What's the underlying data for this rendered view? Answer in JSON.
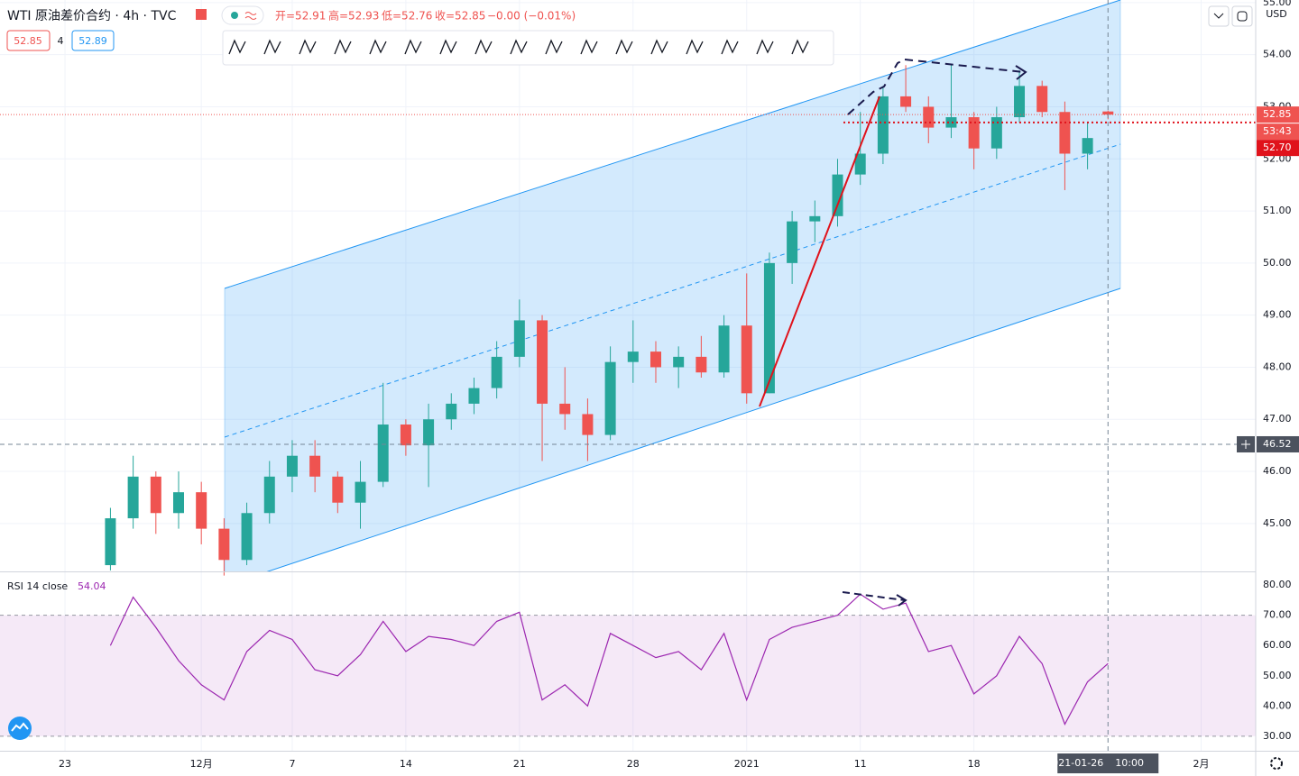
{
  "chart_data": [
    {
      "type": "candlestick",
      "title": "WTI 原油差价合约 · 4h · TVC",
      "ohlc_legend": [
        "开=52.91",
        "高=52.93",
        "低=52.76",
        "收=52.85",
        "−0.00 (−0.01%)"
      ],
      "quote_boxes": {
        "sell": {
          "value": 52.85,
          "label": "52.85"
        },
        "spread": 4,
        "buy": {
          "value": 52.89,
          "label": "52.89"
        }
      },
      "currency": "USD",
      "x": [
        2,
        3,
        4,
        5,
        6,
        7,
        8,
        9,
        10,
        11,
        12,
        13,
        14,
        15,
        16,
        17,
        18,
        19,
        20,
        21,
        22,
        23,
        24,
        25,
        26,
        27,
        28,
        29,
        30,
        31,
        32,
        33,
        34,
        35,
        36,
        37,
        38,
        39,
        40,
        41,
        42,
        43,
        44,
        45,
        45.9
      ],
      "open": [
        44.2,
        45.1,
        45.9,
        45.2,
        45.6,
        44.9,
        44.3,
        45.2,
        45.9,
        46.3,
        45.9,
        45.4,
        45.8,
        46.9,
        46.5,
        47.0,
        47.3,
        47.6,
        48.2,
        48.9,
        47.3,
        47.1,
        46.7,
        48.1,
        48.3,
        48.0,
        48.2,
        47.9,
        48.8,
        47.5,
        50.0,
        50.8,
        50.9,
        51.7,
        52.1,
        53.2,
        53.0,
        52.6,
        52.8,
        52.2,
        52.8,
        53.4,
        52.9,
        52.1,
        52.91
      ],
      "high": [
        45.3,
        46.3,
        46.0,
        46.0,
        45.8,
        45.1,
        45.4,
        46.2,
        46.6,
        46.6,
        46.0,
        46.2,
        47.7,
        47.0,
        47.3,
        47.5,
        47.8,
        48.5,
        49.3,
        49.0,
        48.0,
        47.4,
        48.4,
        48.9,
        48.5,
        48.4,
        48.6,
        49.0,
        49.8,
        50.2,
        51.0,
        51.2,
        52.0,
        52.9,
        53.4,
        53.8,
        53.2,
        53.8,
        52.9,
        53.0,
        53.7,
        53.5,
        53.1,
        52.7,
        52.93
      ],
      "low": [
        44.1,
        44.9,
        44.8,
        44.9,
        44.6,
        44.0,
        44.2,
        45.0,
        45.6,
        45.6,
        45.2,
        44.9,
        45.7,
        46.3,
        45.7,
        46.8,
        47.1,
        47.4,
        48.0,
        46.2,
        46.8,
        46.2,
        46.6,
        47.7,
        47.7,
        47.6,
        47.8,
        47.8,
        47.3,
        47.5,
        49.6,
        50.4,
        50.7,
        51.5,
        51.9,
        52.9,
        52.3,
        52.4,
        51.8,
        52.0,
        52.7,
        52.8,
        51.4,
        51.8,
        52.76
      ],
      "close": [
        45.1,
        45.9,
        45.2,
        45.6,
        44.9,
        44.3,
        45.2,
        45.9,
        46.3,
        45.9,
        45.4,
        45.8,
        46.9,
        46.5,
        47.0,
        47.3,
        47.6,
        48.2,
        48.9,
        47.3,
        47.1,
        46.7,
        48.1,
        48.3,
        48.0,
        48.2,
        47.9,
        48.8,
        47.5,
        50.0,
        50.8,
        50.9,
        51.7,
        52.1,
        53.2,
        53.0,
        52.6,
        52.8,
        52.2,
        52.8,
        53.4,
        52.9,
        52.1,
        52.4,
        52.85
      ],
      "up_color": "#26a69a",
      "down_color": "#ef5350",
      "xlim": [
        -2.86,
        52.4
      ],
      "xticks": [
        {
          "value": 0,
          "label": "23"
        },
        {
          "value": 6,
          "label": "12月"
        },
        {
          "value": 10,
          "label": "7"
        },
        {
          "value": 15,
          "label": "14"
        },
        {
          "value": 20,
          "label": "21"
        },
        {
          "value": 25,
          "label": "28"
        },
        {
          "value": 30,
          "label": "2021"
        },
        {
          "value": 35,
          "label": "11"
        },
        {
          "value": 40,
          "label": "18"
        },
        {
          "value": 50,
          "label": "2月"
        }
      ],
      "ylim": [
        44.08,
        55.05
      ],
      "yticks": [
        {
          "value": 45,
          "label": "45.00"
        },
        {
          "value": 46,
          "label": "46.00"
        },
        {
          "value": 47,
          "label": "47.00"
        },
        {
          "value": 48,
          "label": "48.00"
        },
        {
          "value": 49,
          "label": "49.00"
        },
        {
          "value": 50,
          "label": "50.00"
        },
        {
          "value": 51,
          "label": "51.00"
        },
        {
          "value": 52,
          "label": "52.00"
        },
        {
          "value": 53,
          "label": "53.00"
        },
        {
          "value": 54,
          "label": "54.00"
        },
        {
          "value": 55,
          "label": "55.00"
        }
      ],
      "grid": true,
      "last_price": 52.85,
      "countdown": "53:43",
      "line_price": {
        "value": 52.7,
        "label": "52.70"
      },
      "crosshair": {
        "price": 46.52,
        "x": 45.9,
        "date": "2021-01-26",
        "time": "10:00"
      }
    },
    {
      "type": "line",
      "name": "RSI 14 close",
      "last_value": 54.04,
      "color": "#9c27b0",
      "x": [
        2,
        3,
        4,
        5,
        6,
        7,
        8,
        9,
        10,
        11,
        12,
        13,
        14,
        15,
        16,
        17,
        18,
        19,
        20,
        21,
        22,
        23,
        24,
        25,
        26,
        27,
        28,
        29,
        30,
        31,
        32,
        33,
        34,
        35,
        36,
        37,
        38,
        39,
        40,
        41,
        42,
        43,
        44,
        45,
        45.9
      ],
      "values": [
        60,
        76,
        66,
        55,
        47,
        42,
        58,
        65,
        62,
        52,
        50,
        57,
        68,
        58,
        63,
        62,
        60,
        68,
        71,
        42,
        47,
        40,
        64,
        60,
        56,
        58,
        52,
        64,
        42,
        62,
        66,
        68,
        70,
        77,
        72,
        74,
        58,
        60,
        44,
        50,
        63,
        54,
        34,
        48,
        54.04
      ],
      "band": [
        30,
        70
      ],
      "ylim": [
        25.2,
        83.9
      ],
      "yticks": [
        {
          "value": 30,
          "label": "30.00"
        },
        {
          "value": 40,
          "label": "40.00"
        },
        {
          "value": 50,
          "label": "50.00"
        },
        {
          "value": 60,
          "label": "60.00"
        },
        {
          "value": 70,
          "label": "70.00"
        },
        {
          "value": 80,
          "label": "80.00"
        }
      ]
    }
  ]
}
